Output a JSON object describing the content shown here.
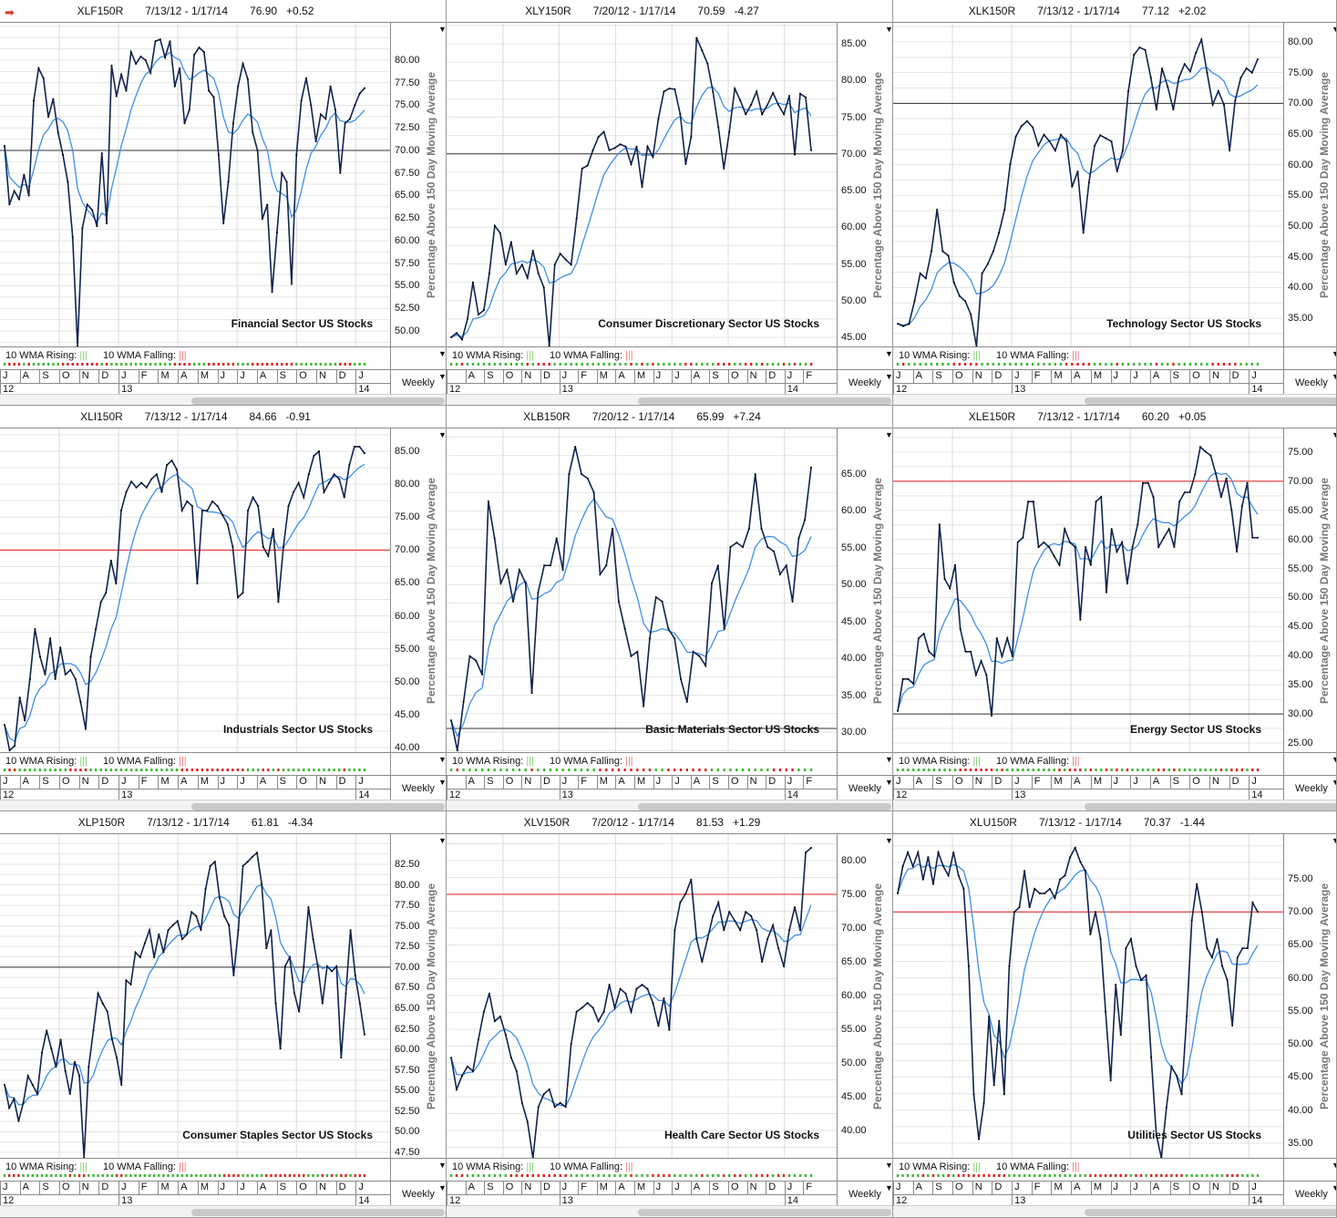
{
  "axis_label": "Percentage Above 150 Day Moving Average",
  "indicator": {
    "rising_label": "10 WMA Rising:",
    "falling_label": "10 WMA Falling:",
    "bars": "|||",
    "rising_color": "#3cb832",
    "falling_color": "#e02020"
  },
  "period_label": "Weekly",
  "colors": {
    "price": "#0f2350",
    "wma": "#3d8fe8"
  },
  "chart_data": [
    {
      "type": "line",
      "symbol": "XLF150R",
      "range": "7/13/12 - 1/17/14",
      "last": "76.90",
      "change": "+0.52",
      "title": "Financial Sector US Stocks",
      "show_arrow": true,
      "ylim": [
        48.28,
        84.14
      ],
      "ticks": [
        50,
        52.5,
        55,
        57.5,
        60,
        62.5,
        65,
        67.5,
        70,
        72.5,
        75,
        77.5,
        80
      ],
      "ref_lines": [
        {
          "value": 70,
          "color": "#333333"
        }
      ],
      "months": [
        "J",
        "A",
        "S",
        "O",
        "N",
        "D",
        "J",
        "F",
        "M",
        "A",
        "M",
        "J",
        "J",
        "A",
        "S",
        "O",
        "N",
        "D",
        "J"
      ],
      "years": [
        {
          "label": "12",
          "month": 0
        },
        {
          "label": "13",
          "month": 6
        },
        {
          "label": "14",
          "month": 18
        }
      ],
      "values": [
        70.5,
        64,
        65.5,
        64.6,
        67.3,
        65,
        75.5,
        79.1,
        78,
        73.7,
        75.7,
        72,
        69.5,
        66.5,
        60.4,
        48.3,
        61.4,
        64,
        63.4,
        61.6,
        69.7,
        61.9,
        79.4,
        76,
        78.4,
        76.6,
        80.9,
        79.6,
        80.4,
        80,
        78.6,
        82.1,
        82.3,
        80.3,
        82.1,
        77.1,
        79.1,
        73,
        74.5,
        80.6,
        81.4,
        80.9,
        76.6,
        75.9,
        69.5,
        61.9,
        66.5,
        73,
        77.1,
        79.6,
        77.9,
        72,
        70,
        62.4,
        64,
        54.3,
        60.9,
        67.5,
        66.5,
        55.2,
        69.5,
        75.5,
        78,
        75,
        71,
        74,
        73.5,
        77.1,
        74.5,
        67.5,
        73,
        73.5,
        75,
        76.3,
        76.9
      ]
    },
    {
      "type": "line",
      "symbol": "XLY150R",
      "range": "7/20/12 - 1/17/14",
      "last": "70.59",
      "change": "-4.27",
      "title": "Consumer Discretionary Sector US Stocks",
      "ylim": [
        43.76,
        87.86
      ],
      "ticks": [
        45,
        50,
        55,
        60,
        65,
        70,
        75,
        80,
        85
      ],
      "ref_lines": [
        {
          "value": 70,
          "color": "#333333"
        }
      ],
      "months": [
        "",
        "A",
        "S",
        "O",
        "N",
        "D",
        "J",
        "F",
        "M",
        "A",
        "M",
        "J",
        "J",
        "A",
        "S",
        "O",
        "N",
        "D",
        "J",
        "F"
      ],
      "years": [
        {
          "label": "12",
          "month": 0
        },
        {
          "label": "13",
          "month": 6
        },
        {
          "label": "14",
          "month": 18
        }
      ],
      "values": [
        45,
        45.6,
        44.7,
        47.5,
        52.5,
        48.1,
        48.7,
        53.7,
        60.2,
        59.2,
        54.9,
        58,
        53.7,
        54.9,
        53.1,
        56.8,
        53.7,
        51.8,
        43.8,
        54.9,
        56.4,
        55.6,
        54.9,
        61.2,
        68,
        68.4,
        70.5,
        72.3,
        73,
        70.5,
        70.8,
        71.3,
        71,
        68.6,
        71,
        65.5,
        71,
        69.6,
        74.8,
        78.5,
        78.9,
        78.8,
        75.4,
        68.6,
        72.3,
        85.8,
        84.1,
        82.3,
        78.5,
        73.6,
        68,
        73,
        78.9,
        77.3,
        75.4,
        76.7,
        78.5,
        75.4,
        76.7,
        78.3,
        76.7,
        75.4,
        77.9,
        69.9,
        78.2,
        77.7,
        70.5
      ]
    },
    {
      "type": "line",
      "symbol": "XLK150R",
      "range": "7/13/12 - 1/17/14",
      "last": "77.12",
      "change": "+2.02",
      "title": "Technology Sector US Stocks",
      "ylim": [
        30.4,
        83.12
      ],
      "ticks": [
        35,
        40,
        45,
        50,
        55,
        60,
        65,
        70,
        75,
        80
      ],
      "ref_lines": [
        {
          "value": 70,
          "color": "#333333"
        }
      ],
      "months": [
        "J",
        "A",
        "S",
        "O",
        "N",
        "D",
        "J",
        "F",
        "M",
        "A",
        "M",
        "J",
        "J",
        "A",
        "S",
        "O",
        "N",
        "D",
        "J"
      ],
      "years": [
        {
          "label": "12",
          "month": 0
        },
        {
          "label": "13",
          "month": 6
        },
        {
          "label": "14",
          "month": 18
        }
      ],
      "values": [
        34.1,
        33.7,
        34.1,
        37.8,
        42.3,
        41.5,
        45.9,
        52.7,
        45.9,
        45.2,
        40.8,
        38.6,
        37.8,
        35.6,
        30.4,
        42.3,
        43.8,
        45.9,
        48.9,
        52.7,
        60.1,
        64.6,
        66.3,
        67.1,
        66.1,
        63.1,
        64.9,
        63.8,
        62.3,
        64.9,
        63.8,
        56.4,
        58.9,
        48.9,
        57.1,
        63.1,
        64.8,
        64.3,
        63.8,
        58.9,
        62.3,
        72,
        77.9,
        79.1,
        78.7,
        74.2,
        69,
        75.7,
        72.7,
        69,
        74.2,
        76.4,
        75.2,
        78.2,
        80.4,
        75,
        69.8,
        72,
        69.8,
        62.3,
        70.5,
        74.2,
        75.7,
        75,
        77.2
      ]
    },
    {
      "type": "line",
      "symbol": "XLI150R",
      "range": "7/13/12 - 1/17/14",
      "last": "84.66",
      "change": "-0.91",
      "title": "Industrials Sector US Stocks",
      "ylim": [
        39.31,
        88.46
      ],
      "ticks": [
        40,
        45,
        50,
        55,
        60,
        65,
        70,
        75,
        80,
        85
      ],
      "ref_lines": [
        {
          "value": 70,
          "color": "#e81c1c"
        }
      ],
      "months": [
        "J",
        "A",
        "S",
        "O",
        "N",
        "D",
        "J",
        "F",
        "M",
        "A",
        "M",
        "J",
        "J",
        "A",
        "S",
        "O",
        "N",
        "D",
        "J"
      ],
      "years": [
        {
          "label": "12",
          "month": 0
        },
        {
          "label": "13",
          "month": 6
        },
        {
          "label": "14",
          "month": 18
        }
      ],
      "values": [
        43.45,
        39.57,
        40.26,
        47.6,
        44.1,
        50.4,
        58,
        53.8,
        51.1,
        56.6,
        50.4,
        55.2,
        51.1,
        51.8,
        50.4,
        46.9,
        42.8,
        53.8,
        58,
        62.1,
        63.5,
        68.4,
        64.9,
        76,
        78.8,
        80.4,
        79.5,
        80.2,
        79.5,
        80.8,
        81.5,
        78.8,
        82.9,
        83.6,
        82.2,
        76,
        77.4,
        76.7,
        64.9,
        76,
        76,
        77.4,
        76.7,
        75.3,
        73.9,
        70.5,
        62.8,
        63.5,
        76,
        78,
        76.7,
        70.5,
        69.1,
        73.2,
        62.1,
        70.5,
        76.7,
        78.8,
        80.2,
        78,
        81.5,
        84.3,
        85,
        78.8,
        80.2,
        81.5,
        80.8,
        78,
        82.9,
        85.7,
        85.7,
        84.7
      ]
    },
    {
      "type": "line",
      "symbol": "XLB150R",
      "range": "7/20/12 - 1/17/14",
      "last": "65.99",
      "change": "+7.24",
      "title": "Basic Materials Sector US Stocks",
      "ylim": [
        27.28,
        71.18
      ],
      "ticks": [
        30,
        35,
        40,
        45,
        50,
        55,
        60,
        65
      ],
      "ref_lines": [
        {
          "value": 30.5,
          "color": "#333333"
        }
      ],
      "months": [
        "",
        "A",
        "S",
        "O",
        "N",
        "D",
        "J",
        "F",
        "M",
        "A",
        "M",
        "J",
        "J",
        "A",
        "S",
        "O",
        "N",
        "D",
        "J",
        "F"
      ],
      "years": [
        {
          "label": "12",
          "month": 0
        },
        {
          "label": "13",
          "month": 6
        },
        {
          "label": "14",
          "month": 18
        }
      ],
      "values": [
        31.6,
        27.5,
        34.1,
        40.3,
        39.7,
        37.8,
        61.3,
        56.3,
        50.2,
        52,
        47.7,
        52,
        50.2,
        35.3,
        48.9,
        52.6,
        52.6,
        56.3,
        52,
        65,
        68.7,
        65,
        64.4,
        62.5,
        51.4,
        52.6,
        57.6,
        47.7,
        44,
        40.3,
        40.9,
        33.5,
        42.7,
        48.3,
        47.7,
        44,
        42.7,
        37.2,
        34.1,
        40.9,
        40.3,
        39,
        50.2,
        52.6,
        44,
        55.1,
        55.7,
        55.1,
        57.6,
        65,
        57.6,
        55.1,
        54.5,
        51.4,
        52.6,
        47.7,
        56.3,
        58.8,
        65.9
      ]
    },
    {
      "type": "line",
      "symbol": "XLE150R",
      "range": "7/13/12 - 1/17/14",
      "last": "60.20",
      "change": "+0.05",
      "title": "Energy Sector US Stocks",
      "ylim": [
        23.43,
        79.07
      ],
      "ticks": [
        25,
        30,
        35,
        40,
        45,
        50,
        55,
        60,
        65,
        70,
        75
      ],
      "ref_lines": [
        {
          "value": 70,
          "color": "#e81c1c"
        },
        {
          "value": 30,
          "color": "#333333"
        }
      ],
      "months": [
        "J",
        "A",
        "S",
        "O",
        "N",
        "D",
        "J",
        "F",
        "M",
        "A",
        "M",
        "J",
        "J",
        "A",
        "S",
        "O",
        "N",
        "D",
        "J"
      ],
      "years": [
        {
          "label": "12",
          "month": 0
        },
        {
          "label": "13",
          "month": 6
        },
        {
          "label": "14",
          "month": 18
        }
      ],
      "values": [
        30.5,
        36,
        36,
        35.2,
        43,
        43.8,
        40.7,
        39.9,
        62.6,
        53.2,
        51.6,
        55.6,
        44.6,
        40.7,
        40.7,
        36.7,
        39.1,
        36.7,
        29.7,
        43,
        39.9,
        43,
        39.9,
        59.5,
        60.3,
        66.5,
        66.5,
        58.7,
        59.5,
        58.7,
        57.1,
        55.6,
        61.8,
        59.5,
        58.7,
        46.2,
        58.7,
        55.6,
        66.5,
        67.3,
        50.9,
        61.8,
        57.9,
        59.5,
        52.4,
        58.7,
        62.6,
        69.7,
        69.7,
        67.3,
        58.7,
        60.3,
        61.8,
        58.7,
        66.5,
        68.1,
        68.1,
        71.2,
        75.9,
        75.1,
        74.4,
        71.2,
        67.3,
        70.5,
        65,
        57.9,
        65.7,
        69.7,
        60.3,
        60.3
      ]
    },
    {
      "type": "line",
      "symbol": "XLP150R",
      "range": "7/13/12 - 1/17/14",
      "last": "61.81",
      "change": "-4.34",
      "title": "Consumer Staples Sector US Stocks",
      "ylim": [
        46.84,
        86.15
      ],
      "ticks": [
        47.5,
        50,
        52.5,
        55,
        57.5,
        60,
        62.5,
        65,
        67.5,
        70,
        72.5,
        75,
        77.5,
        80,
        82.5
      ],
      "ref_lines": [
        {
          "value": 70,
          "color": "#333333"
        }
      ],
      "months": [
        "J",
        "A",
        "S",
        "O",
        "N",
        "D",
        "J",
        "F",
        "M",
        "A",
        "M",
        "J",
        "J",
        "A",
        "S",
        "O",
        "N",
        "D",
        "J"
      ],
      "years": [
        {
          "label": "12",
          "month": 0
        },
        {
          "label": "13",
          "month": 6
        },
        {
          "label": "14",
          "month": 18
        }
      ],
      "values": [
        55.7,
        52.9,
        54,
        51.3,
        53.5,
        56.8,
        55.7,
        54.6,
        59.6,
        62.3,
        60.1,
        57.9,
        61.2,
        57.4,
        54.6,
        58.5,
        56.8,
        46.8,
        57.9,
        62.3,
        66.8,
        65.6,
        64.6,
        61.2,
        59,
        55.7,
        68.4,
        67.9,
        71.8,
        71.2,
        72.9,
        74.5,
        71.2,
        74,
        71.8,
        74.5,
        75.1,
        75.6,
        73.4,
        74,
        76.7,
        76.2,
        74.5,
        79.5,
        82.3,
        82.8,
        78.4,
        76.2,
        75.1,
        69,
        74.5,
        82.3,
        82.8,
        83.4,
        83.9,
        80.1,
        72.3,
        74.5,
        65.6,
        60.1,
        70.1,
        71.2,
        66.8,
        64.6,
        70.1,
        77.3,
        73.4,
        70.1,
        65.6,
        70.1,
        69.5,
        70.1,
        59,
        66.8,
        74.5,
        69,
        65.6,
        61.8
      ]
    },
    {
      "type": "line",
      "symbol": "XLV150R",
      "range": "7/20/12 - 1/17/14",
      "last": "81.53",
      "change": "+1.29",
      "title": "Health Care Sector US Stocks",
      "ylim": [
        35.95,
        83.92
      ],
      "ticks": [
        40,
        45,
        50,
        55,
        60,
        65,
        70,
        75,
        80
      ],
      "ref_lines": [
        {
          "value": 75,
          "color": "#e81c1c"
        }
      ],
      "months": [
        "",
        "A",
        "S",
        "O",
        "N",
        "D",
        "J",
        "F",
        "M",
        "A",
        "M",
        "J",
        "J",
        "A",
        "S",
        "O",
        "N",
        "D",
        "J",
        "F"
      ],
      "years": [
        {
          "label": "12",
          "month": 0
        },
        {
          "label": "13",
          "month": 6
        },
        {
          "label": "14",
          "month": 18
        }
      ],
      "values": [
        50.8,
        46.1,
        48.1,
        49.5,
        48.8,
        53.5,
        57.6,
        60.3,
        56.2,
        56.9,
        54.2,
        50.8,
        48.8,
        44.1,
        41.3,
        35.9,
        43.5,
        45.4,
        46.1,
        43.5,
        44.1,
        43.5,
        52.8,
        57.6,
        58.2,
        58.9,
        58.2,
        56.2,
        57.6,
        61.6,
        58.2,
        61,
        60.3,
        57.6,
        61,
        61.6,
        61,
        58.9,
        55.5,
        59.6,
        54.9,
        69.7,
        73.8,
        75.1,
        77.2,
        68.4,
        65,
        68.4,
        71.8,
        73.8,
        69.7,
        72.4,
        71.1,
        69.7,
        72.4,
        71.8,
        69.7,
        65,
        68.4,
        70.4,
        67,
        64.3,
        69.7,
        73.1,
        69.7,
        81.2,
        81.9
      ]
    },
    {
      "type": "line",
      "symbol": "XLU150R",
      "range": "7/13/12 - 1/17/14",
      "last": "70.37",
      "change": "-1.44",
      "title": "Utilities Sector US Stocks",
      "ylim": [
        32.79,
        81.76
      ],
      "ticks": [
        35,
        40,
        45,
        50,
        55,
        60,
        65,
        70,
        75
      ],
      "ref_lines": [
        {
          "value": 70,
          "color": "#e81c1c"
        }
      ],
      "months": [
        "J",
        "A",
        "S",
        "O",
        "N",
        "D",
        "J",
        "F",
        "M",
        "A",
        "M",
        "J",
        "J",
        "A",
        "S",
        "O",
        "N",
        "D",
        "J"
      ],
      "years": [
        {
          "label": "12",
          "month": 0
        },
        {
          "label": "13",
          "month": 6
        },
        {
          "label": "14",
          "month": 18
        }
      ],
      "values": [
        72.8,
        76.9,
        79,
        76.9,
        79,
        74.9,
        78.3,
        74.2,
        79,
        76.9,
        75.5,
        79,
        75.5,
        73.5,
        61.8,
        42.4,
        35.6,
        41.1,
        54.2,
        43.8,
        53.5,
        42.4,
        61.8,
        70,
        70.7,
        76.2,
        70.7,
        73.5,
        72.8,
        72.8,
        73.5,
        72.1,
        74.9,
        75.5,
        78.3,
        79.7,
        77.6,
        76.2,
        66.6,
        70,
        65.9,
        54.9,
        44.5,
        59,
        51.4,
        64.5,
        65.9,
        61.8,
        59.7,
        60.4,
        48,
        36.3,
        32.8,
        40.4,
        46.6,
        45.2,
        42.4,
        54.2,
        68.7,
        74.2,
        70,
        64.5,
        63.1,
        65.9,
        61.8,
        59.7,
        52.8,
        63.1,
        64.5,
        64.5,
        71.4,
        70
      ]
    }
  ]
}
